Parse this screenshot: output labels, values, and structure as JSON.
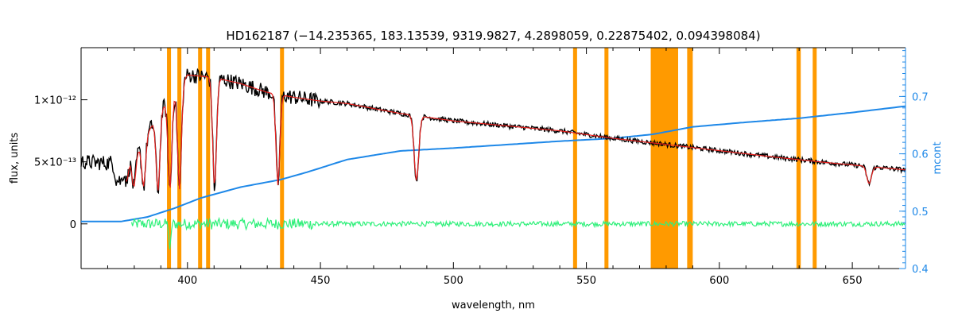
{
  "chart_data": {
    "type": "line",
    "title": "HD162187    (−14.235365, 183.13539, 9319.9827, 4.2898059, 0.22875402, 0.094398084)",
    "xlabel": "wavelength, nm",
    "ylabel": "flux, units",
    "y2label": "mcont",
    "xlim": [
      360,
      670
    ],
    "ylim": [
      -3.6e-13,
      1.42e-12
    ],
    "y2lim": [
      0.4,
      0.785
    ],
    "x_ticks": [
      400,
      450,
      500,
      550,
      600,
      650
    ],
    "y_ticks": [
      {
        "value": 0,
        "label": "0"
      },
      {
        "value": 5e-13,
        "label": "5×10⁻¹³"
      },
      {
        "value": 1e-12,
        "label": "1×10⁻¹²"
      }
    ],
    "y2_ticks": [
      0.4,
      0.5,
      0.6,
      0.7
    ],
    "colors": {
      "observed": "#000000",
      "model": "#e8201e",
      "residual": "#2ff07a",
      "continuum": "#1e88e8",
      "masked_region": "#ff9a00",
      "axis2": "#1e88e8"
    },
    "series": [
      {
        "key": "observed",
        "continuum": [
          [
            360,
            5e-13
          ],
          [
            370,
            4.9e-13
          ],
          [
            380,
            5.4e-13
          ],
          [
            390,
            9.2e-13
          ],
          [
            400,
            1.2e-12
          ],
          [
            410,
            1.18e-12
          ],
          [
            420,
            1.13e-12
          ],
          [
            430,
            1.06e-12
          ],
          [
            440,
            1.02e-12
          ],
          [
            450,
            9.9e-13
          ],
          [
            460,
            9.7e-13
          ],
          [
            470,
            9.3e-13
          ],
          [
            480,
            8.9e-13
          ],
          [
            490,
            8.6e-13
          ],
          [
            500,
            8.3e-13
          ],
          [
            520,
            7.9e-13
          ],
          [
            540,
            7.5e-13
          ],
          [
            560,
            6.9e-13
          ],
          [
            580,
            6.4e-13
          ],
          [
            600,
            5.9e-13
          ],
          [
            620,
            5.4e-13
          ],
          [
            640,
            4.95e-13
          ],
          [
            660,
            4.55e-13
          ],
          [
            670,
            4.35e-13
          ]
        ],
        "absorption_lines": [
          [
            373.4,
            0.3
          ],
          [
            375.0,
            0.32
          ],
          [
            377.1,
            0.35
          ],
          [
            379.8,
            0.45
          ],
          [
            383.5,
            0.55
          ],
          [
            388.9,
            0.7
          ],
          [
            393.4,
            0.72
          ],
          [
            397.0,
            0.75
          ],
          [
            410.2,
            0.75
          ],
          [
            434.0,
            0.7
          ],
          [
            486.1,
            0.6
          ],
          [
            656.3,
            0.3
          ]
        ],
        "noise_amplitude": 2.5e-14
      },
      {
        "key": "model",
        "x_range": [
          377,
          670
        ]
      },
      {
        "key": "residual",
        "x_range": [
          379,
          670
        ],
        "baseline": 0,
        "noise_amplitude": 2e-14
      },
      {
        "key": "continuum",
        "axis": "y2",
        "points": [
          [
            360,
            0.482
          ],
          [
            375,
            0.482
          ],
          [
            385,
            0.49
          ],
          [
            395,
            0.505
          ],
          [
            405,
            0.523
          ],
          [
            420,
            0.542
          ],
          [
            435,
            0.555
          ],
          [
            445,
            0.568
          ],
          [
            460,
            0.59
          ],
          [
            480,
            0.605
          ],
          [
            500,
            0.61
          ],
          [
            520,
            0.616
          ],
          [
            540,
            0.622
          ],
          [
            560,
            0.627
          ],
          [
            575,
            0.634
          ],
          [
            590,
            0.647
          ],
          [
            610,
            0.655
          ],
          [
            630,
            0.662
          ],
          [
            650,
            0.672
          ],
          [
            670,
            0.683
          ]
        ]
      }
    ],
    "masked_regions": [
      [
        392.3,
        393.8
      ],
      [
        396.2,
        397.7
      ],
      [
        404.0,
        405.5
      ],
      [
        407.0,
        408.5
      ],
      [
        434.8,
        436.3
      ],
      [
        545.0,
        546.5
      ],
      [
        556.8,
        558.3
      ],
      [
        574.2,
        584.5
      ],
      [
        587.9,
        590.0
      ],
      [
        629.0,
        630.6
      ],
      [
        635.1,
        636.6
      ]
    ]
  }
}
